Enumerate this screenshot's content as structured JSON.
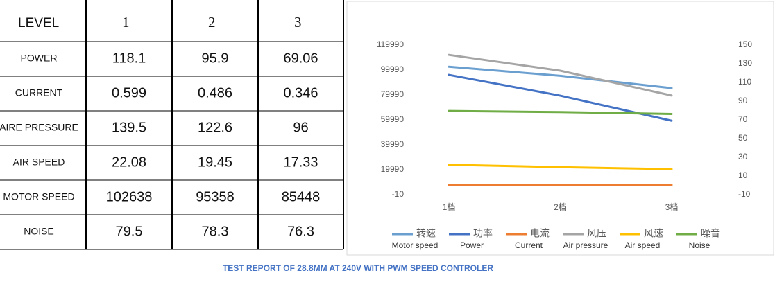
{
  "table": {
    "header": [
      "LEVEL",
      "1",
      "2",
      "3"
    ],
    "rows": [
      [
        "POWER",
        118.1,
        95.9,
        69.06
      ],
      [
        "CURRENT",
        0.599,
        0.486,
        0.346
      ],
      [
        "AIRE PRESSURE",
        139.5,
        122.6,
        96
      ],
      [
        "AIR SPEED",
        22.08,
        19.45,
        17.33
      ],
      [
        "MOTOR SPEED",
        102638,
        95358,
        85448
      ],
      [
        "NOISE",
        79.5,
        78.3,
        76.3
      ]
    ]
  },
  "chart_data": {
    "type": "line",
    "categories": [
      "1档",
      "2档",
      "3档"
    ],
    "ylim": [
      -10,
      119990
    ],
    "yticks": [
      -10,
      19990,
      39990,
      59990,
      79990,
      99990,
      119990
    ],
    "y2lim": [
      -10,
      150
    ],
    "y2ticks": [
      -10,
      10,
      30,
      50,
      70,
      90,
      110,
      130,
      150
    ],
    "grid": false,
    "series": [
      {
        "name": "转速",
        "label": "Motor speed",
        "color": "#6a9fd0",
        "values": [
          102638,
          95358,
          85448
        ]
      },
      {
        "name": "功率",
        "label": "Power",
        "color": "#4472c4",
        "axis": "y2",
        "values": [
          118.1,
          95.9,
          69.06
        ]
      },
      {
        "name": "电流",
        "label": "Current",
        "color": "#ed7d31",
        "axis": "y2",
        "values": [
          0.599,
          0.486,
          0.346
        ]
      },
      {
        "name": "风压",
        "label": "Air pressure",
        "color": "#a5a5a5",
        "axis": "y2",
        "values": [
          139.5,
          122.6,
          96
        ]
      },
      {
        "name": "风速",
        "label": "Air speed",
        "color": "#ffc000",
        "axis": "y2",
        "values": [
          22.08,
          19.45,
          17.33
        ]
      },
      {
        "name": "噪音",
        "label": "Noise",
        "color": "#70ad47",
        "axis": "y2",
        "values": [
          79.5,
          78.3,
          76.3
        ]
      }
    ]
  },
  "footer": "TEST REPORT OF 28.8MM AT 240V WITH PWM SPEED CONTROLER"
}
